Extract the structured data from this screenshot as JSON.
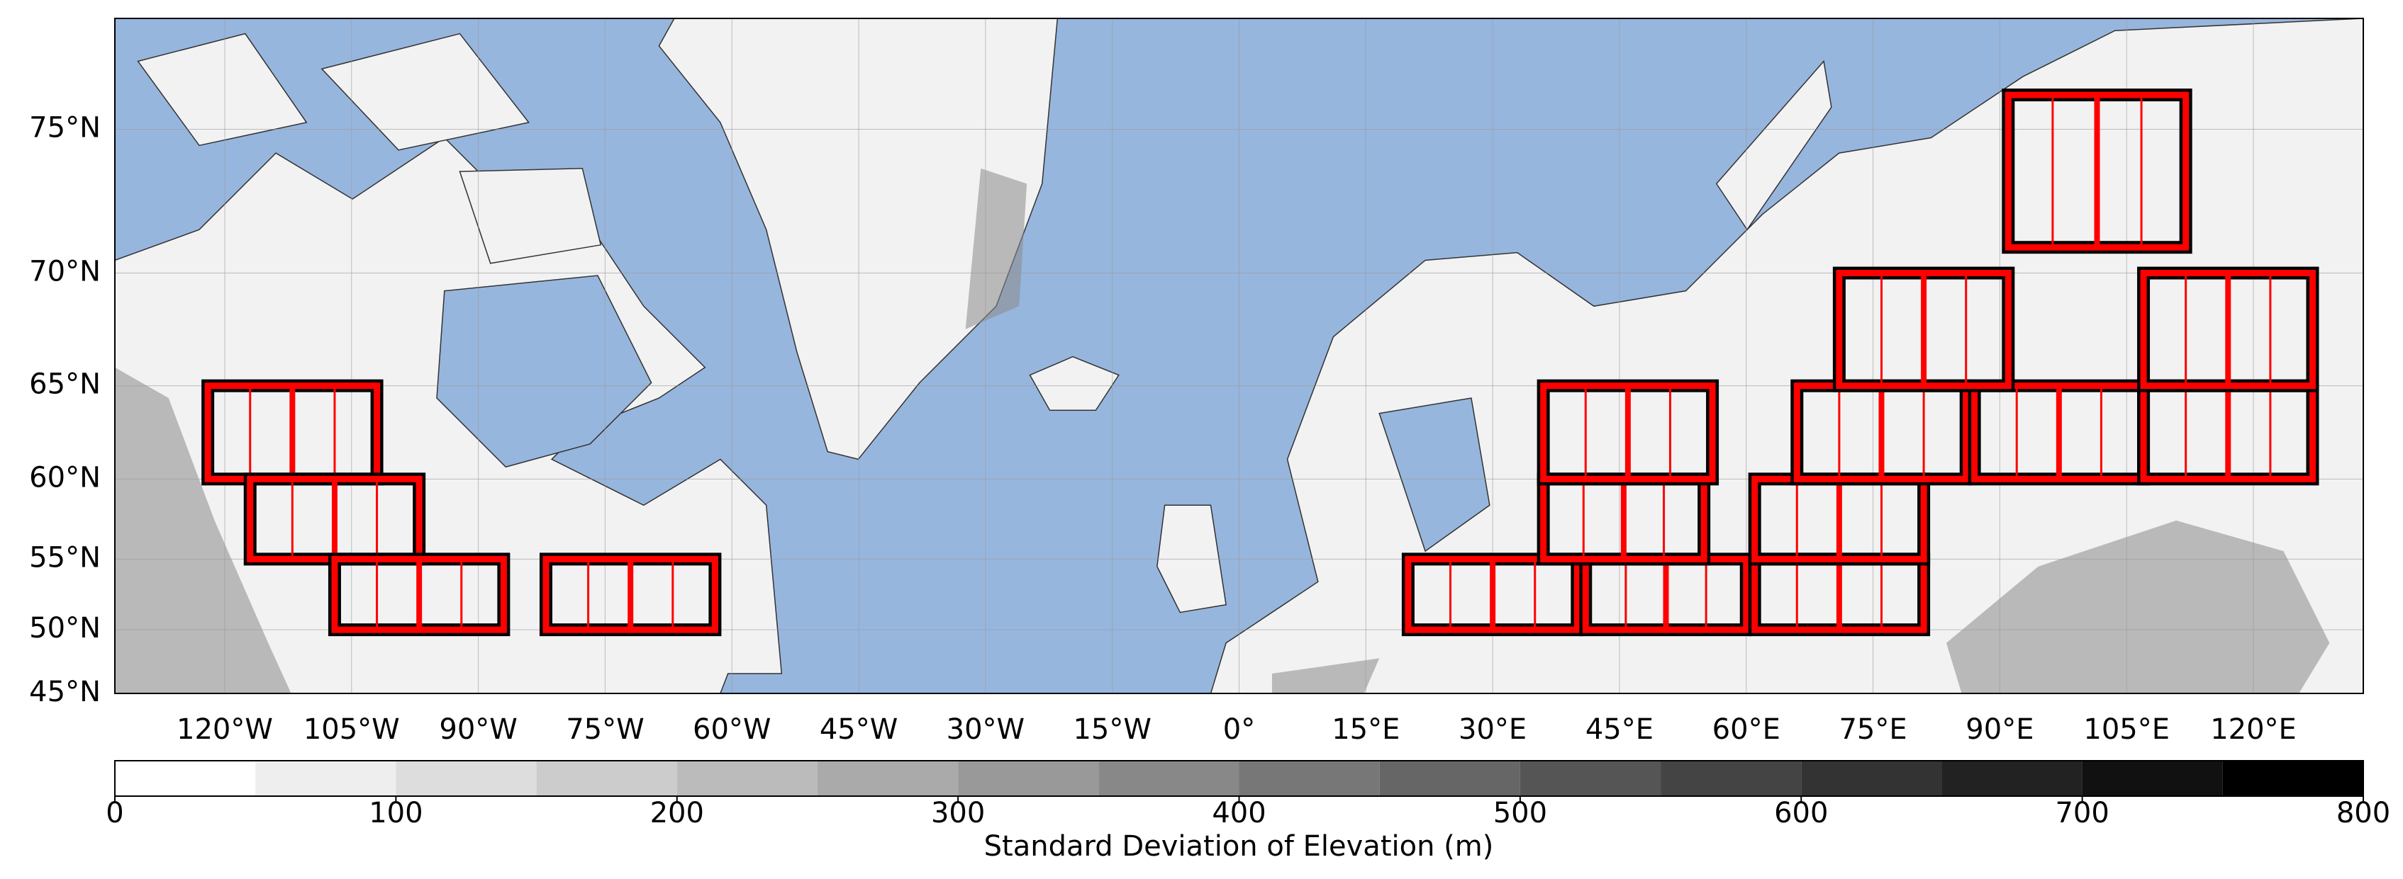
{
  "map": {
    "type": "map",
    "projection": "mercator",
    "xlim": [
      -133,
      133
    ],
    "ylim": [
      45,
      78
    ],
    "xticks": [
      {
        "value": -120,
        "label": "120°W"
      },
      {
        "value": -105,
        "label": "105°W"
      },
      {
        "value": -90,
        "label": "90°W"
      },
      {
        "value": -75,
        "label": "75°W"
      },
      {
        "value": -60,
        "label": "60°W"
      },
      {
        "value": -45,
        "label": "45°W"
      },
      {
        "value": -30,
        "label": "30°W"
      },
      {
        "value": -15,
        "label": "15°W"
      },
      {
        "value": 0,
        "label": "0°"
      },
      {
        "value": 15,
        "label": "15°E"
      },
      {
        "value": 30,
        "label": "30°E"
      },
      {
        "value": 45,
        "label": "45°E"
      },
      {
        "value": 60,
        "label": "60°E"
      },
      {
        "value": 75,
        "label": "75°E"
      },
      {
        "value": 90,
        "label": "90°E"
      },
      {
        "value": 105,
        "label": "105°E"
      },
      {
        "value": 120,
        "label": "120°E"
      }
    ],
    "yticks": [
      {
        "value": 45,
        "label": "45°N"
      },
      {
        "value": 50,
        "label": "50°N"
      },
      {
        "value": 55,
        "label": "55°N"
      },
      {
        "value": 60,
        "label": "60°N"
      },
      {
        "value": 65,
        "label": "65°N"
      },
      {
        "value": 70,
        "label": "70°N"
      },
      {
        "value": 75,
        "label": "75°N"
      }
    ],
    "grid": true,
    "ocean_color": "#97b6de",
    "region_color": "#ff0000",
    "regions": [
      {
        "lon": [
          -122,
          -102
        ],
        "lat": [
          60,
          65
        ]
      },
      {
        "lon": [
          -117,
          -97
        ],
        "lat": [
          55,
          60
        ]
      },
      {
        "lon": [
          -107,
          -87
        ],
        "lat": [
          50,
          55
        ]
      },
      {
        "lon": [
          -82,
          -62
        ],
        "lat": [
          50,
          55
        ]
      },
      {
        "lon": [
          20,
          40
        ],
        "lat": [
          50,
          55
        ]
      },
      {
        "lon": [
          41,
          60
        ],
        "lat": [
          50,
          55
        ]
      },
      {
        "lon": [
          61,
          81
        ],
        "lat": [
          50,
          55
        ]
      },
      {
        "lon": [
          36,
          55
        ],
        "lat": [
          55,
          60
        ]
      },
      {
        "lon": [
          61,
          81
        ],
        "lat": [
          55,
          60
        ]
      },
      {
        "lon": [
          36,
          56
        ],
        "lat": [
          60,
          65
        ]
      },
      {
        "lon": [
          66,
          86
        ],
        "lat": [
          60,
          65
        ]
      },
      {
        "lon": [
          87,
          107
        ],
        "lat": [
          60,
          65
        ]
      },
      {
        "lon": [
          107,
          127
        ],
        "lat": [
          60,
          65
        ]
      },
      {
        "lon": [
          71,
          91
        ],
        "lat": [
          65,
          70
        ]
      },
      {
        "lon": [
          107,
          127
        ],
        "lat": [
          65,
          70
        ]
      },
      {
        "lon": [
          91,
          112
        ],
        "lat": [
          71,
          76
        ]
      }
    ]
  },
  "colorbar": {
    "label": "Standard Deviation of Elevation (m)",
    "lim": [
      0,
      800
    ],
    "ticks": [
      0,
      100,
      200,
      300,
      400,
      500,
      600,
      700,
      800
    ],
    "bins": [
      0,
      50,
      100,
      150,
      200,
      250,
      300,
      350,
      400,
      450,
      500,
      550,
      600,
      650,
      700,
      750,
      800
    ]
  }
}
